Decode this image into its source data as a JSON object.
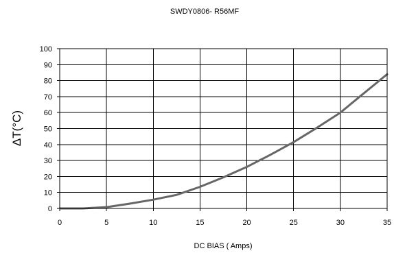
{
  "chart_data": {
    "type": "line",
    "title": "SWDY0806- R56MF",
    "xlabel": "DC BIAS ( Amps)",
    "ylabel": "ΔT(°C)",
    "xlim": [
      0,
      35
    ],
    "ylim": [
      0,
      100
    ],
    "xticks": [
      "0",
      "5",
      "10",
      "15",
      "20",
      "25",
      "30",
      "35"
    ],
    "yticks": [
      "0",
      "10",
      "20",
      "30",
      "40",
      "50",
      "60",
      "70",
      "80",
      "90",
      "100"
    ],
    "grid": true,
    "series": [
      {
        "color": "#666666",
        "x": [
          0,
          2.5,
          5,
          7.5,
          10,
          12.5,
          15,
          17.5,
          20,
          22.5,
          25,
          27.5,
          30,
          32.5,
          35
        ],
        "y": [
          0,
          0,
          0.8,
          3,
          5.5,
          8.5,
          13.5,
          19.5,
          26,
          33.5,
          41.5,
          50.5,
          60,
          72,
          84
        ]
      }
    ]
  }
}
